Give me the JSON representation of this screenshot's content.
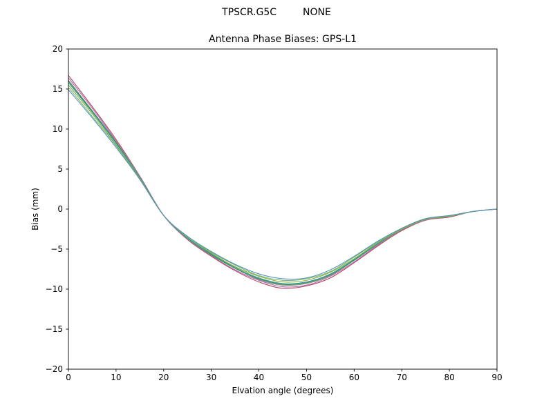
{
  "chart_data": {
    "type": "line",
    "suptitle_left": "TPSCR.G5C",
    "suptitle_right": "NONE",
    "title": "Antenna Phase Biases: GPS-L1",
    "xlabel": "Elvation angle (degrees)",
    "ylabel": "Bias (mm)",
    "xlim": [
      0,
      90
    ],
    "ylim": [
      -20,
      20
    ],
    "xticks": [
      0,
      10,
      20,
      30,
      40,
      50,
      60,
      70,
      80,
      90
    ],
    "yticks": [
      -20,
      -15,
      -10,
      -5,
      0,
      5,
      10,
      15,
      20
    ],
    "xtick_labels": [
      "0",
      "10",
      "20",
      "30",
      "40",
      "50",
      "60",
      "70",
      "80",
      "90"
    ],
    "ytick_labels": [
      "−20",
      "−15",
      "−10",
      "−5",
      "0",
      "5",
      "10",
      "15",
      "20"
    ],
    "grid": false,
    "legend": "none",
    "axes_color": "#000000",
    "x": [
      0,
      5,
      10,
      15,
      20,
      25,
      30,
      35,
      40,
      45,
      50,
      55,
      60,
      65,
      70,
      75,
      80,
      85,
      90
    ],
    "series": [
      {
        "color": "#b3455e",
        "values": [
          16.7,
          12.8,
          8.7,
          4.1,
          -0.8,
          -3.8,
          -5.9,
          -7.7,
          -9.1,
          -9.9,
          -9.6,
          -8.6,
          -6.7,
          -4.6,
          -2.7,
          -1.4,
          -1.0,
          -0.3,
          0.0
        ]
      },
      {
        "color": "#b06ab0",
        "values": [
          16.4,
          12.6,
          8.5,
          4.1,
          -0.8,
          -3.7,
          -5.8,
          -7.6,
          -8.9,
          -9.7,
          -9.5,
          -8.4,
          -6.6,
          -4.5,
          -2.6,
          -1.4,
          -0.9,
          -0.3,
          0.0
        ]
      },
      {
        "color": "#8a8a8a",
        "values": [
          16.1,
          12.3,
          8.4,
          4.0,
          -0.8,
          -3.7,
          -5.7,
          -7.4,
          -8.8,
          -9.5,
          -9.3,
          -8.3,
          -6.4,
          -4.4,
          -2.6,
          -1.3,
          -0.9,
          -0.3,
          0.0
        ]
      },
      {
        "color": "#3c8c50",
        "values": [
          16.0,
          12.2,
          8.3,
          3.9,
          -0.8,
          -3.6,
          -5.7,
          -7.4,
          -8.7,
          -9.4,
          -9.2,
          -8.2,
          -6.4,
          -4.3,
          -2.5,
          -1.3,
          -0.9,
          -0.3,
          0.0
        ]
      },
      {
        "color": "#2f9e9e",
        "values": [
          15.8,
          12.1,
          8.2,
          3.9,
          -0.8,
          -3.6,
          -5.6,
          -7.3,
          -8.6,
          -9.3,
          -9.1,
          -8.1,
          -6.3,
          -4.3,
          -2.5,
          -1.3,
          -0.9,
          -0.3,
          0.0
        ]
      },
      {
        "color": "#93a83c",
        "values": [
          15.5,
          11.9,
          8.0,
          3.8,
          -0.8,
          -3.5,
          -5.5,
          -7.2,
          -8.4,
          -9.1,
          -8.9,
          -7.9,
          -6.2,
          -4.2,
          -2.5,
          -1.3,
          -0.9,
          -0.3,
          0.0
        ]
      },
      {
        "color": "#6abf69",
        "values": [
          15.2,
          11.6,
          7.9,
          3.7,
          -0.8,
          -3.5,
          -5.4,
          -7.0,
          -8.3,
          -8.9,
          -8.7,
          -7.8,
          -6.0,
          -4.1,
          -2.4,
          -1.2,
          -0.9,
          -0.3,
          0.0
        ]
      },
      {
        "color": "#5b8db8",
        "values": [
          14.9,
          11.4,
          7.7,
          3.7,
          -0.8,
          -3.4,
          -5.3,
          -6.9,
          -8.1,
          -8.7,
          -8.6,
          -7.6,
          -5.9,
          -4.0,
          -2.4,
          -1.2,
          -0.8,
          -0.3,
          0.0
        ]
      }
    ]
  }
}
